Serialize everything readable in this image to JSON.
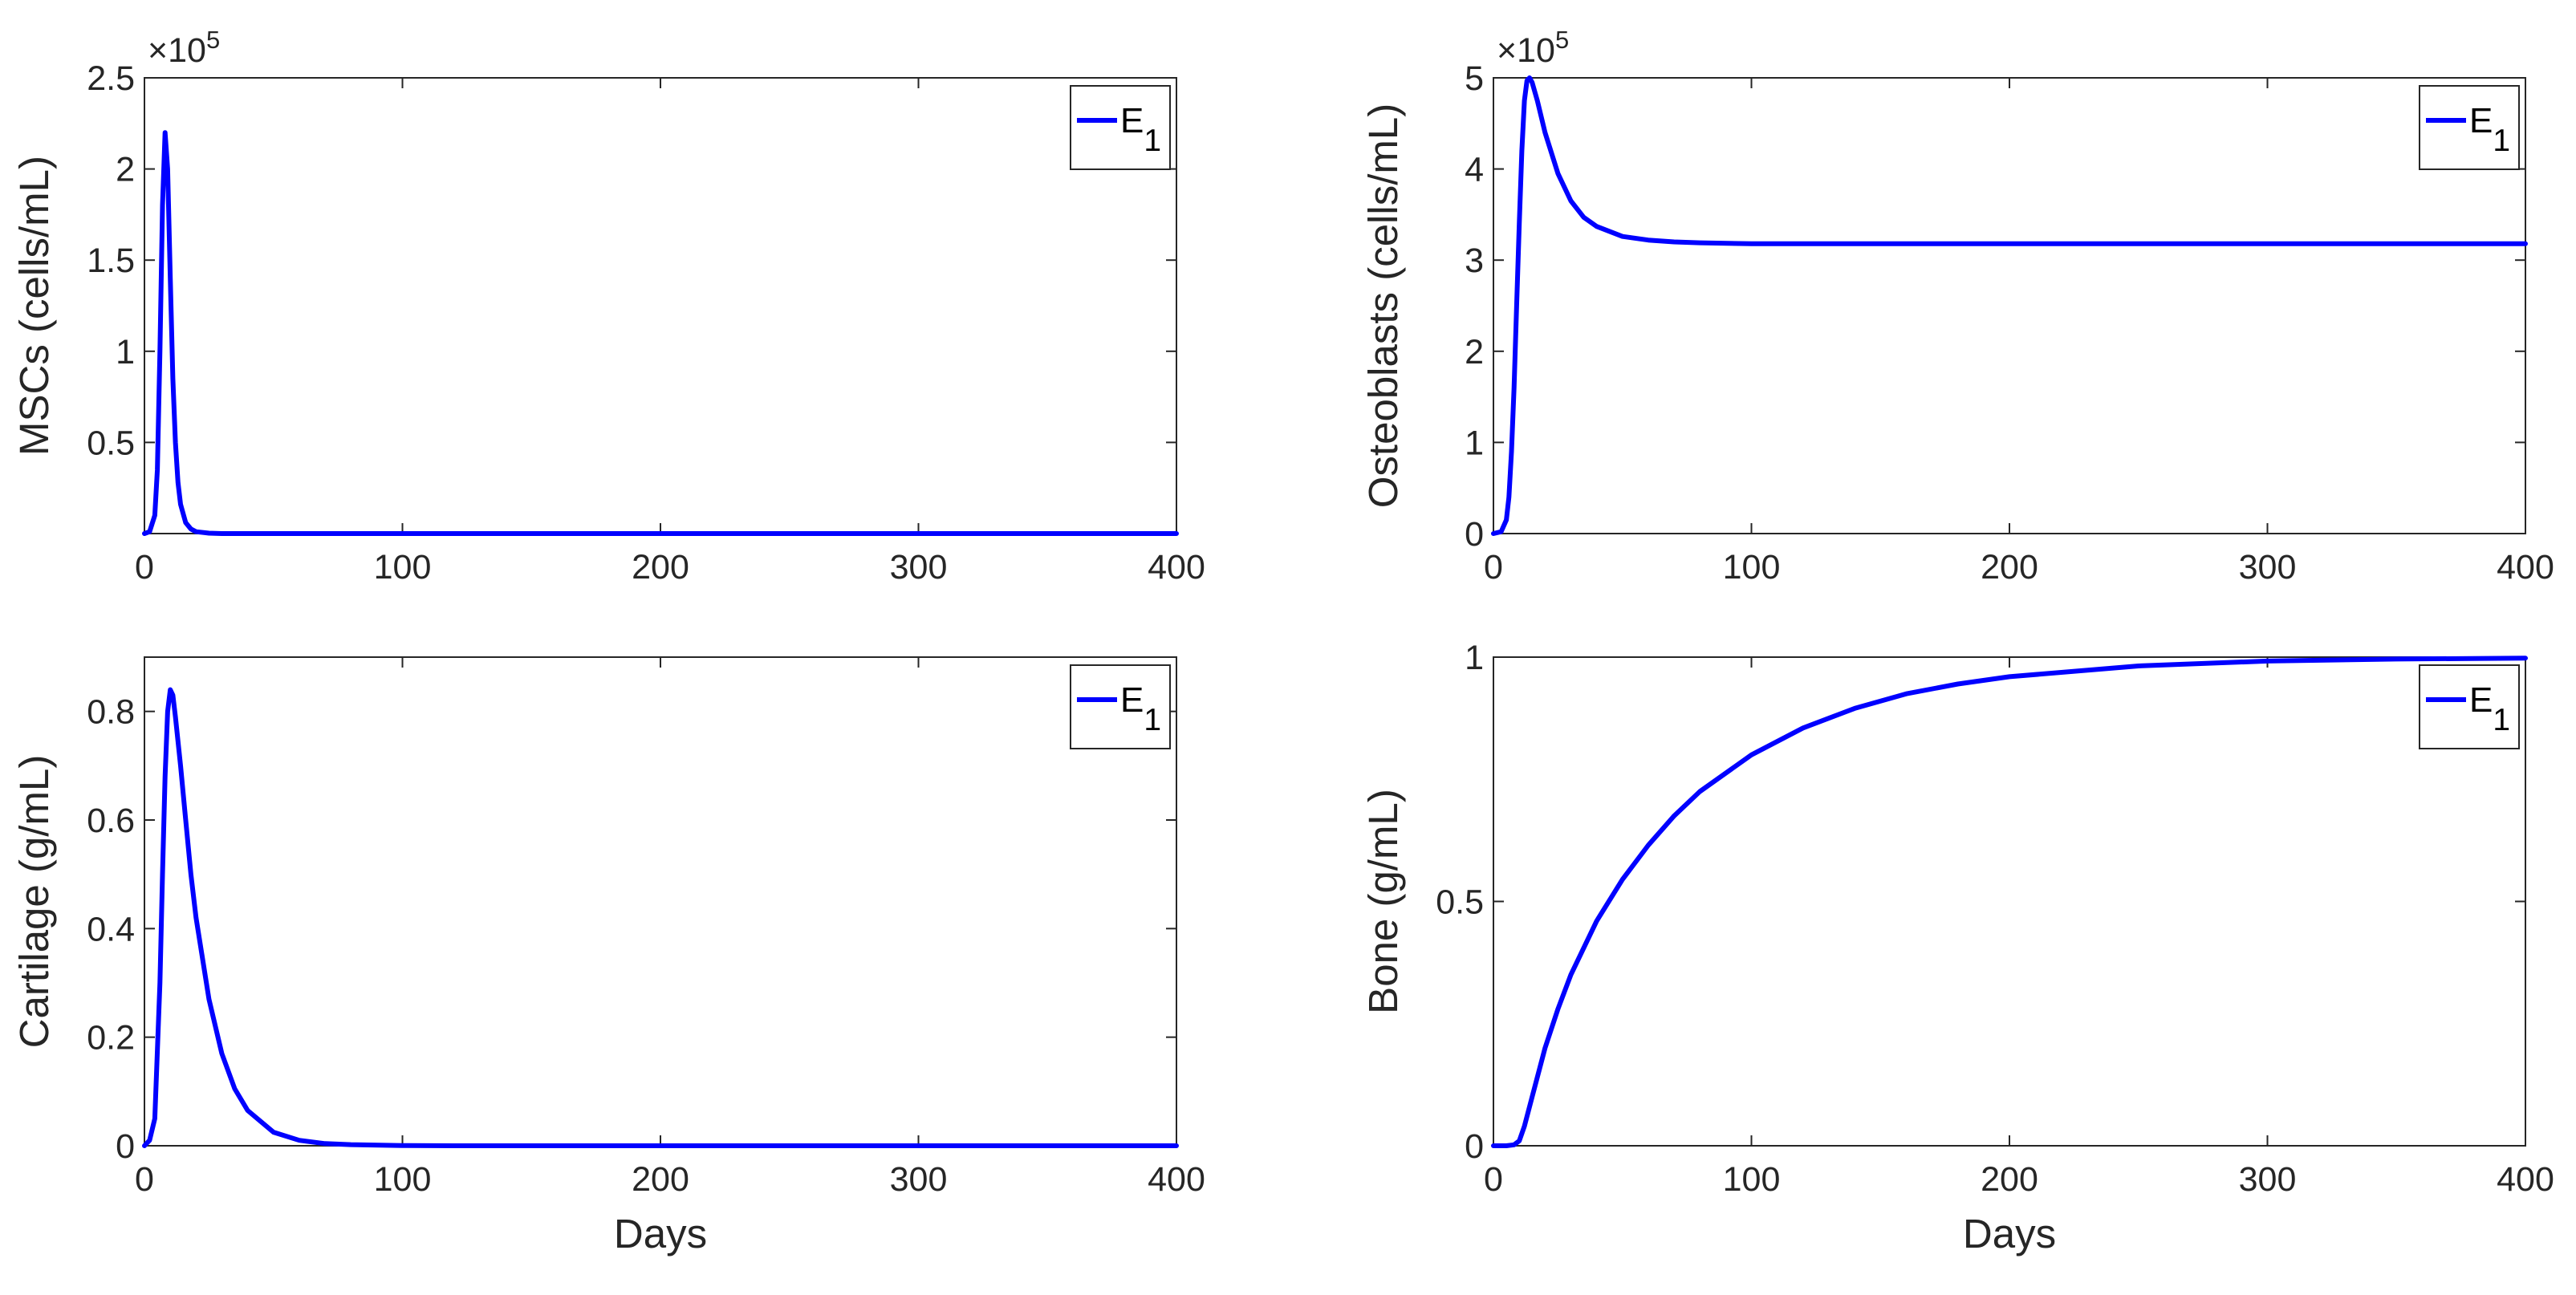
{
  "chart_data": [
    {
      "type": "line",
      "ylabel": "MSCs (cells/mL)",
      "xlabel": "",
      "xlim": [
        0,
        400
      ],
      "ylim": [
        0,
        2.5
      ],
      "x_ticks": [
        "0",
        "100",
        "200",
        "300",
        "400"
      ],
      "y_ticks": [
        "0.5",
        "1",
        "1.5",
        "2",
        "2.5"
      ],
      "y_exponent": {
        "base": "×10",
        "power": "5"
      },
      "legend": {
        "label": "E",
        "subscript": "1",
        "position": "top-right"
      },
      "grid": false,
      "series": [
        {
          "name": "E1",
          "color": "#0000ff",
          "x": [
            0,
            2,
            4,
            5,
            6,
            7,
            8,
            9,
            10,
            11,
            12,
            13,
            14,
            16,
            18,
            20,
            25,
            30,
            400
          ],
          "y": [
            0,
            0.01,
            0.1,
            0.35,
            1.0,
            1.8,
            2.2,
            2.0,
            1.4,
            0.85,
            0.5,
            0.28,
            0.16,
            0.06,
            0.025,
            0.01,
            0.002,
            0,
            0
          ]
        }
      ]
    },
    {
      "type": "line",
      "ylabel": "Osteoblasts (cells/mL)",
      "xlabel": "",
      "xlim": [
        0,
        400
      ],
      "ylim": [
        0,
        5
      ],
      "x_ticks": [
        "0",
        "100",
        "200",
        "300",
        "400"
      ],
      "y_ticks": [
        "0",
        "1",
        "2",
        "3",
        "4",
        "5"
      ],
      "y_exponent": {
        "base": "×10",
        "power": "5"
      },
      "legend": {
        "label": "E",
        "subscript": "1",
        "position": "top-right"
      },
      "grid": false,
      "series": [
        {
          "name": "E1",
          "color": "#0000ff",
          "x": [
            0,
            3,
            5,
            6,
            7,
            8,
            9,
            10,
            11,
            12,
            13,
            14,
            15,
            17,
            20,
            25,
            30,
            35,
            40,
            50,
            60,
            70,
            80,
            100,
            120,
            400
          ],
          "y": [
            0,
            0.02,
            0.15,
            0.4,
            0.9,
            1.6,
            2.5,
            3.4,
            4.2,
            4.75,
            4.97,
            5.0,
            4.95,
            4.75,
            4.4,
            3.95,
            3.65,
            3.47,
            3.37,
            3.26,
            3.22,
            3.2,
            3.19,
            3.18,
            3.18,
            3.18
          ]
        }
      ]
    },
    {
      "type": "line",
      "ylabel": "Cartilage (g/mL)",
      "xlabel": "Days",
      "xlim": [
        0,
        400
      ],
      "ylim": [
        0,
        0.9
      ],
      "x_ticks": [
        "0",
        "100",
        "200",
        "300",
        "400"
      ],
      "y_ticks": [
        "0",
        "0.2",
        "0.4",
        "0.6",
        "0.8"
      ],
      "legend": {
        "label": "E",
        "subscript": "1",
        "position": "top-right"
      },
      "grid": false,
      "series": [
        {
          "name": "E1",
          "color": "#0000ff",
          "x": [
            0,
            2,
            4,
            6,
            7,
            8,
            9,
            10,
            11,
            12,
            14,
            16,
            18,
            20,
            25,
            30,
            35,
            40,
            50,
            60,
            70,
            80,
            100,
            120,
            400
          ],
          "y": [
            0,
            0.01,
            0.05,
            0.3,
            0.5,
            0.68,
            0.8,
            0.84,
            0.83,
            0.79,
            0.7,
            0.6,
            0.5,
            0.42,
            0.27,
            0.17,
            0.105,
            0.065,
            0.025,
            0.01,
            0.004,
            0.002,
            0.0005,
            0,
            0
          ]
        }
      ]
    },
    {
      "type": "line",
      "ylabel": "Bone (g/mL)",
      "xlabel": "Days",
      "xlim": [
        0,
        400
      ],
      "ylim": [
        0,
        1
      ],
      "x_ticks": [
        "0",
        "100",
        "200",
        "300",
        "400"
      ],
      "y_ticks": [
        "0",
        "0.5",
        "1"
      ],
      "legend": {
        "label": "E",
        "subscript": "1",
        "position": "top-right"
      },
      "grid": false,
      "series": [
        {
          "name": "E1",
          "color": "#0000ff",
          "x": [
            0,
            5,
            8,
            10,
            12,
            15,
            20,
            25,
            30,
            40,
            50,
            60,
            70,
            80,
            100,
            120,
            140,
            160,
            180,
            200,
            250,
            300,
            350,
            400
          ],
          "y": [
            0,
            0,
            0.002,
            0.01,
            0.04,
            0.1,
            0.2,
            0.28,
            0.35,
            0.46,
            0.545,
            0.615,
            0.675,
            0.725,
            0.8,
            0.855,
            0.895,
            0.925,
            0.945,
            0.96,
            0.982,
            0.992,
            0.996,
            0.998
          ]
        }
      ]
    }
  ]
}
